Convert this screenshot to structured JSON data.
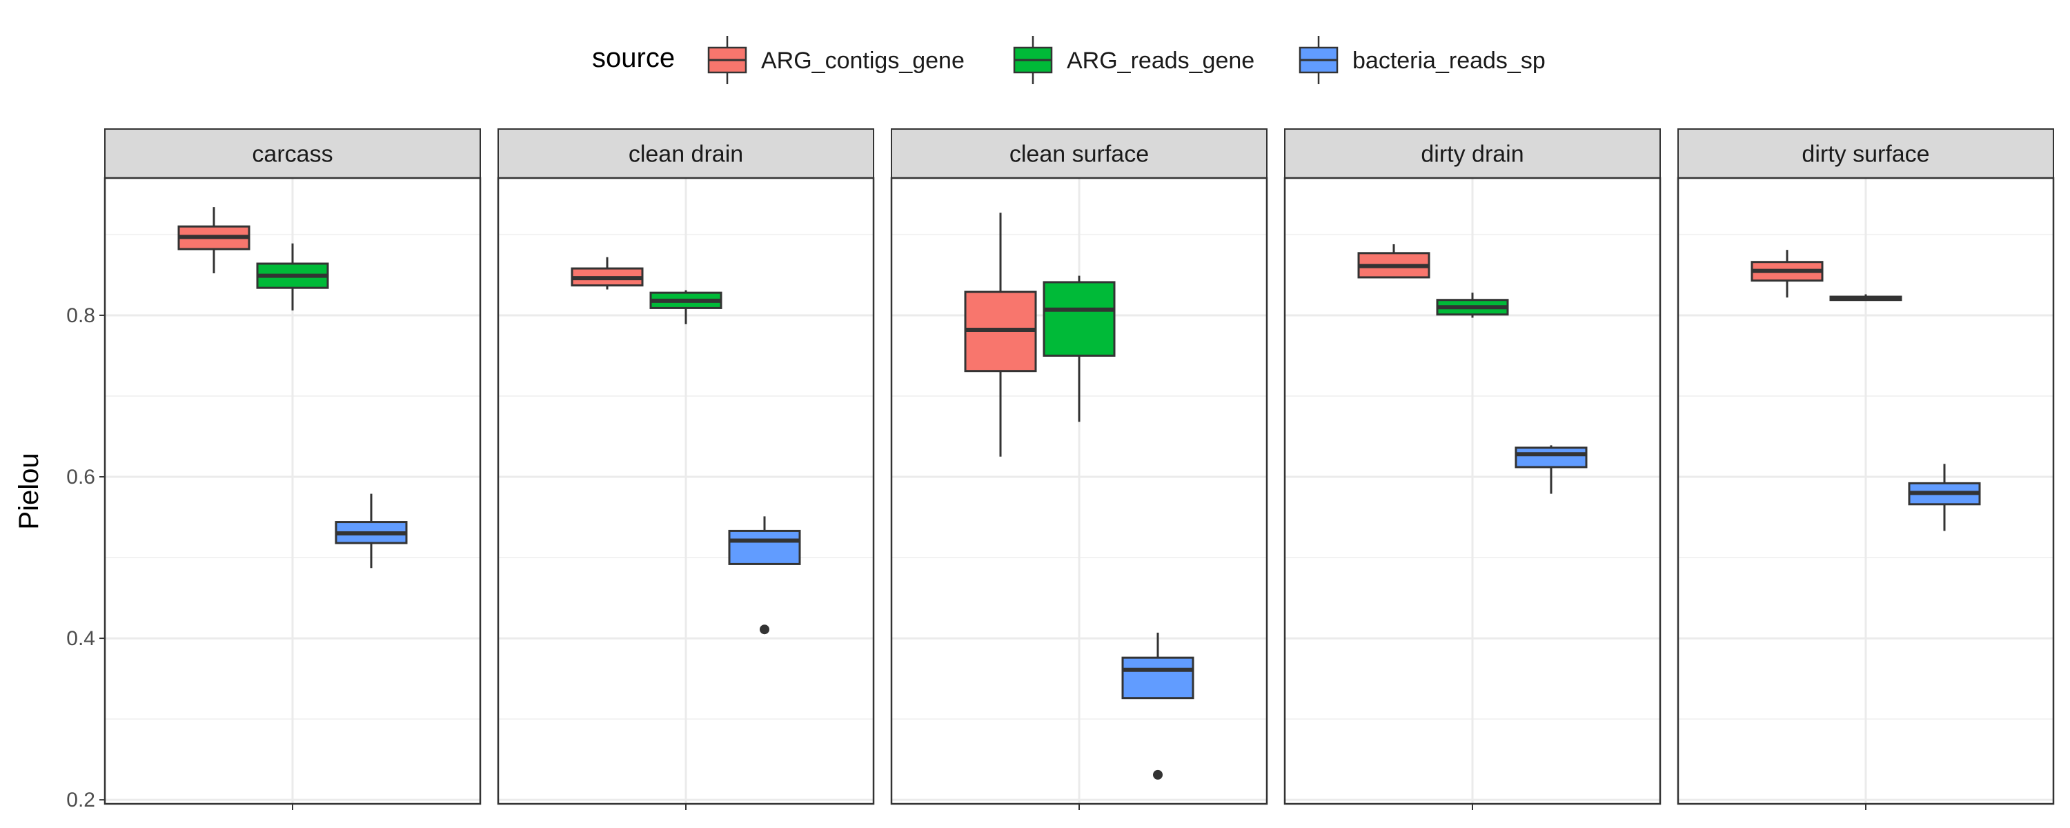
{
  "chart_data": {
    "type": "boxplot",
    "ylabel": "Pielou",
    "ylim": [
      0.195,
      0.97
    ],
    "yticks": [
      0.2,
      0.4,
      0.6,
      0.8
    ],
    "ytick_labels": [
      "0.2",
      "0.4",
      "0.6",
      "0.8"
    ],
    "grid": true,
    "legend": {
      "title": "source",
      "position": "top"
    },
    "series": [
      {
        "name": "ARG_contigs_gene",
        "color": "#F8766D"
      },
      {
        "name": "ARG_reads_gene",
        "color": "#00BA38"
      },
      {
        "name": "bacteria_reads_sp",
        "color": "#619CFF"
      }
    ],
    "facets": [
      {
        "name": "carcass",
        "boxes": [
          {
            "series": "ARG_contigs_gene",
            "min": 0.852,
            "q1": 0.882,
            "median": 0.897,
            "q3": 0.91,
            "max": 0.934,
            "outliers": []
          },
          {
            "series": "ARG_reads_gene",
            "min": 0.806,
            "q1": 0.834,
            "median": 0.849,
            "q3": 0.864,
            "max": 0.889,
            "outliers": []
          },
          {
            "series": "bacteria_reads_sp",
            "min": 0.487,
            "q1": 0.518,
            "median": 0.53,
            "q3": 0.544,
            "max": 0.579,
            "outliers": []
          }
        ]
      },
      {
        "name": "clean drain",
        "boxes": [
          {
            "series": "ARG_contigs_gene",
            "min": 0.832,
            "q1": 0.837,
            "median": 0.846,
            "q3": 0.858,
            "max": 0.872,
            "outliers": []
          },
          {
            "series": "ARG_reads_gene",
            "min": 0.789,
            "q1": 0.809,
            "median": 0.818,
            "q3": 0.828,
            "max": 0.831,
            "outliers": []
          },
          {
            "series": "bacteria_reads_sp",
            "min": 0.492,
            "q1": 0.492,
            "median": 0.521,
            "q3": 0.533,
            "max": 0.551,
            "outliers": [
              0.411
            ]
          }
        ]
      },
      {
        "name": "clean surface",
        "boxes": [
          {
            "series": "ARG_contigs_gene",
            "min": 0.625,
            "q1": 0.731,
            "median": 0.782,
            "q3": 0.829,
            "max": 0.927,
            "outliers": []
          },
          {
            "series": "ARG_reads_gene",
            "min": 0.668,
            "q1": 0.75,
            "median": 0.807,
            "q3": 0.841,
            "max": 0.849,
            "outliers": []
          },
          {
            "series": "bacteria_reads_sp",
            "min": 0.326,
            "q1": 0.326,
            "median": 0.361,
            "q3": 0.376,
            "max": 0.407,
            "outliers": [
              0.231
            ]
          }
        ]
      },
      {
        "name": "dirty drain",
        "boxes": [
          {
            "series": "ARG_contigs_gene",
            "min": 0.846,
            "q1": 0.847,
            "median": 0.861,
            "q3": 0.877,
            "max": 0.888,
            "outliers": []
          },
          {
            "series": "ARG_reads_gene",
            "min": 0.797,
            "q1": 0.801,
            "median": 0.81,
            "q3": 0.819,
            "max": 0.828,
            "outliers": []
          },
          {
            "series": "bacteria_reads_sp",
            "min": 0.579,
            "q1": 0.612,
            "median": 0.628,
            "q3": 0.636,
            "max": 0.639,
            "outliers": []
          }
        ]
      },
      {
        "name": "dirty surface",
        "boxes": [
          {
            "series": "ARG_contigs_gene",
            "min": 0.822,
            "q1": 0.843,
            "median": 0.855,
            "q3": 0.866,
            "max": 0.881,
            "outliers": []
          },
          {
            "series": "ARG_reads_gene",
            "min": 0.818,
            "q1": 0.819,
            "median": 0.821,
            "q3": 0.823,
            "max": 0.826,
            "outliers": []
          },
          {
            "series": "bacteria_reads_sp",
            "min": 0.533,
            "q1": 0.566,
            "median": 0.58,
            "q3": 0.592,
            "max": 0.616,
            "outliers": []
          }
        ]
      }
    ]
  }
}
